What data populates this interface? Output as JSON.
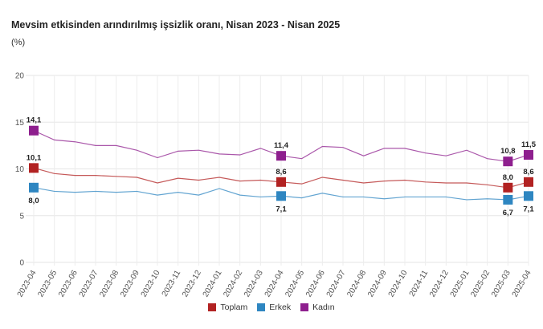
{
  "chart_data": {
    "type": "line",
    "title": "Mevsim etkisinden arındırılmış işsizlik oranı, Nisan 2023 - Nisan 2025",
    "ylabel": "(%)",
    "ylim": [
      0,
      20
    ],
    "yticks": [
      "0",
      "5",
      "10",
      "15",
      "20"
    ],
    "grid": true,
    "legend_position": "bottom",
    "x": [
      "2023-04",
      "2023-05",
      "2023-06",
      "2023-07",
      "2023-08",
      "2023-09",
      "2023-10",
      "2023-11",
      "2023-12",
      "2024-01",
      "2024-02",
      "2024-03",
      "2024-04",
      "2024-05",
      "2024-06",
      "2024-07",
      "2024-08",
      "2024-09",
      "2024-10",
      "2024-11",
      "2024-12",
      "2025-01",
      "2025-02",
      "2025-03",
      "2025-04"
    ],
    "series": [
      {
        "name": "Toplam",
        "color": "#b22222",
        "values": [
          10.1,
          9.5,
          9.3,
          9.3,
          9.2,
          9.1,
          8.5,
          9.0,
          8.8,
          9.1,
          8.7,
          8.8,
          8.6,
          8.4,
          9.1,
          8.8,
          8.5,
          8.7,
          8.8,
          8.6,
          8.5,
          8.5,
          8.3,
          8.0,
          8.6
        ],
        "labels": {
          "0": "10,1",
          "12": "8,6",
          "23": "8,0",
          "24": "8,6"
        }
      },
      {
        "name": "Erkek",
        "color": "#2e86c1",
        "values": [
          8.0,
          7.6,
          7.5,
          7.6,
          7.5,
          7.6,
          7.2,
          7.5,
          7.2,
          7.9,
          7.2,
          7.0,
          7.1,
          6.9,
          7.4,
          7.0,
          7.0,
          6.8,
          7.0,
          7.0,
          7.0,
          6.7,
          6.8,
          6.7,
          7.1
        ],
        "labels": {
          "0": "8,0",
          "12": "7,1",
          "23": "6,7",
          "24": "7,1"
        }
      },
      {
        "name": "Kadın",
        "color": "#8e1f8e",
        "values": [
          14.1,
          13.1,
          12.9,
          12.5,
          12.5,
          12.0,
          11.2,
          11.9,
          12.0,
          11.6,
          11.5,
          12.2,
          11.4,
          11.1,
          12.4,
          12.3,
          11.4,
          12.2,
          12.2,
          11.7,
          11.4,
          12.0,
          11.1,
          10.8,
          11.5
        ],
        "labels": {
          "0": "14,1",
          "12": "11,4",
          "23": "10,8",
          "24": "11,5"
        }
      }
    ]
  }
}
